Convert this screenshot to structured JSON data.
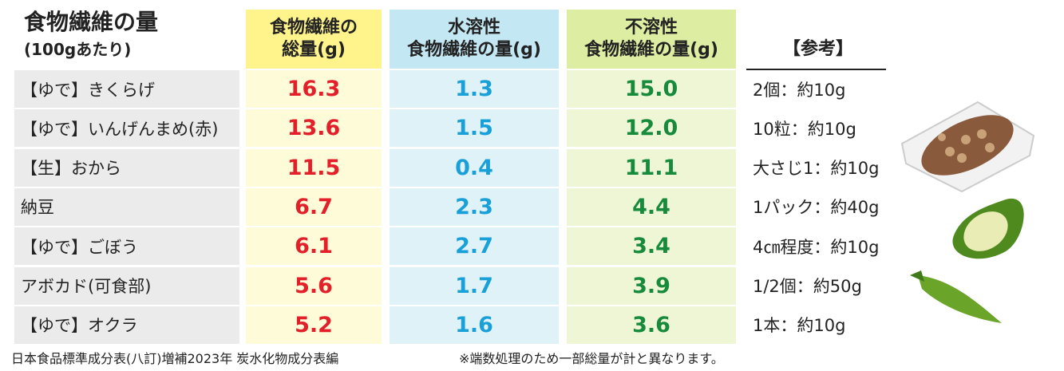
{
  "header": {
    "title": "食物繊維の量",
    "subtitle": "(100gあたり)"
  },
  "table": {
    "columns": [
      [
        "食物繊維の",
        "総量(g)"
      ],
      [
        "水溶性",
        "食物繊維の量(g)"
      ],
      [
        "不溶性",
        "食物繊維の量(g)"
      ],
      [
        "【参考】"
      ]
    ],
    "rows": [
      [
        "【ゆで】きくらげ",
        "16.3",
        "1.3",
        "15.0",
        "2個：約10g"
      ],
      [
        "【ゆで】いんげんまめ(赤)",
        "13.6",
        "1.5",
        "12.0",
        "10粒：約10g"
      ],
      [
        "【生】おから",
        "11.5",
        "0.4",
        "11.1",
        "大さじ1：約10g"
      ],
      [
        "納豆",
        "6.7",
        "2.3",
        "4.4",
        "1パック：約40g"
      ],
      [
        "【ゆで】ごぼう",
        "6.1",
        "2.7",
        "3.4",
        "4㎝程度：約10g"
      ],
      [
        "アボカド(可食部)",
        "5.6",
        "1.7",
        "3.9",
        "1/2個：約50g"
      ],
      [
        "【ゆで】オクラ",
        "5.2",
        "1.6",
        "3.6",
        "1本：約10g"
      ]
    ]
  },
  "footer": {
    "source": "日本食品標準成分表(八訂)増補2023年 炭水化物成分表編",
    "note": "※端数処理のため一部総量が計と異なります。"
  }
}
